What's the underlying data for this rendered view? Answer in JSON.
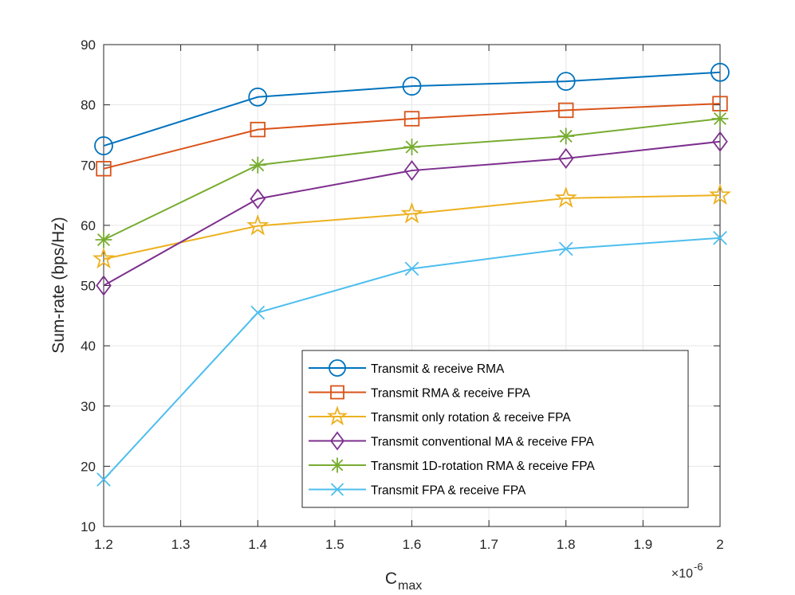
{
  "chart_data": {
    "type": "line",
    "title": "",
    "xlabel": "C",
    "xlabel_subscript": "max",
    "ylabel": "Sum-rate (bps/Hz)",
    "x_exponent_label": "×10",
    "x_exponent_power": "-6",
    "x": [
      1.2,
      1.4,
      1.6,
      1.8,
      2.0
    ],
    "xlim": [
      1.2,
      2.0
    ],
    "ylim": [
      10,
      90
    ],
    "xticks": [
      "1.2",
      "1.3",
      "1.4",
      "1.5",
      "1.6",
      "1.7",
      "1.8",
      "1.9",
      "2"
    ],
    "yticks": [
      "10",
      "20",
      "30",
      "40",
      "50",
      "60",
      "70",
      "80",
      "90"
    ],
    "grid": true,
    "legend_position": "lower-right",
    "series": [
      {
        "name": "Transmit & receive RMA",
        "color": "#0072BD",
        "marker": "circle",
        "values": [
          73.2,
          81.3,
          83.1,
          83.9,
          85.4
        ]
      },
      {
        "name": "Transmit RMA & receive FPA",
        "color": "#D95319",
        "marker": "square",
        "values": [
          69.4,
          75.9,
          77.7,
          79.1,
          80.2
        ]
      },
      {
        "name": "Transmit only rotation & receive FPA",
        "color": "#EDB120",
        "marker": "pentagram",
        "values": [
          54.4,
          59.9,
          61.9,
          64.5,
          65.0
        ]
      },
      {
        "name": "Transmit conventional MA & receive FPA",
        "color": "#7E2F8E",
        "marker": "diamond",
        "values": [
          50.0,
          64.4,
          69.1,
          71.1,
          73.9
        ]
      },
      {
        "name": "Transmit 1D-rotation RMA & receive FPA",
        "color": "#77AC30",
        "marker": "asterisk",
        "values": [
          57.6,
          70.0,
          73.0,
          74.8,
          77.7
        ]
      },
      {
        "name": "Transmit FPA & receive FPA",
        "color": "#4DBEEE",
        "marker": "x",
        "values": [
          17.8,
          45.5,
          52.8,
          56.1,
          57.9
        ]
      }
    ]
  }
}
